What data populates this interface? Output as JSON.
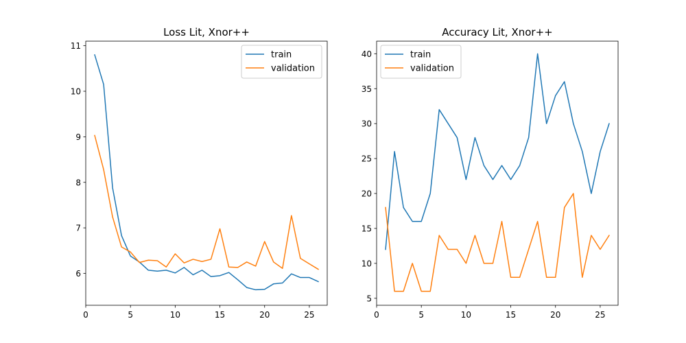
{
  "chart_data": [
    {
      "type": "line",
      "title": "Loss Lit, Xnor++",
      "xlabel": "",
      "ylabel": "",
      "x": [
        1,
        2,
        3,
        4,
        5,
        6,
        7,
        8,
        9,
        10,
        11,
        12,
        13,
        14,
        15,
        16,
        17,
        18,
        19,
        20,
        21,
        22,
        23,
        24,
        25,
        26
      ],
      "xlim": [
        0.0,
        27.0
      ],
      "ylim": [
        5.3,
        11.1
      ],
      "xticks": [
        0,
        5,
        10,
        15,
        20,
        25
      ],
      "xtick_labels": [
        "0",
        "5",
        "10",
        "15",
        "20",
        "25"
      ],
      "yticks": [
        6,
        7,
        8,
        9,
        10,
        11
      ],
      "ytick_labels": [
        "6",
        "7",
        "8",
        "9",
        "10",
        "11"
      ],
      "grid": false,
      "legend_position": "upper right",
      "series": [
        {
          "name": "train",
          "color": "#1f77b4",
          "values": [
            10.8,
            10.15,
            7.88,
            6.83,
            6.38,
            6.25,
            6.07,
            6.05,
            6.07,
            6.01,
            6.13,
            5.97,
            6.07,
            5.93,
            5.95,
            6.02,
            5.86,
            5.69,
            5.64,
            5.65,
            5.77,
            5.79,
            5.99,
            5.91,
            5.91,
            5.82
          ]
        },
        {
          "name": "validation",
          "color": "#ff7f0e",
          "values": [
            9.03,
            8.28,
            7.24,
            6.58,
            6.47,
            6.24,
            6.29,
            6.28,
            6.14,
            6.43,
            6.23,
            6.31,
            6.26,
            6.31,
            6.98,
            6.14,
            6.13,
            6.25,
            6.16,
            6.7,
            6.25,
            6.11,
            7.27,
            6.33,
            6.21,
            6.09
          ]
        }
      ]
    },
    {
      "type": "line",
      "title": "Accuracy Lit, Xnor++",
      "xlabel": "",
      "ylabel": "",
      "x": [
        1,
        2,
        3,
        4,
        5,
        6,
        7,
        8,
        9,
        10,
        11,
        12,
        13,
        14,
        15,
        16,
        17,
        18,
        19,
        20,
        21,
        22,
        23,
        24,
        25,
        26
      ],
      "xlim": [
        0.0,
        27.0
      ],
      "ylim": [
        4.0,
        41.8
      ],
      "xticks": [
        0,
        5,
        10,
        15,
        20,
        25
      ],
      "xtick_labels": [
        "0",
        "5",
        "10",
        "15",
        "20",
        "25"
      ],
      "yticks": [
        5,
        10,
        15,
        20,
        25,
        30,
        35,
        40
      ],
      "ytick_labels": [
        "5",
        "10",
        "15",
        "20",
        "25",
        "30",
        "35",
        "40"
      ],
      "grid": false,
      "legend_position": "upper left",
      "series": [
        {
          "name": "train",
          "color": "#1f77b4",
          "values": [
            12,
            26,
            18,
            16,
            16,
            20,
            32,
            30,
            28,
            22,
            28,
            24,
            22,
            24,
            22,
            24,
            28,
            40,
            30,
            34,
            36,
            30,
            26,
            20,
            26,
            30
          ]
        },
        {
          "name": "validation",
          "color": "#ff7f0e",
          "values": [
            18,
            6,
            6,
            10,
            6,
            6,
            14,
            12,
            12,
            10,
            14,
            10,
            10,
            16,
            8,
            8,
            12,
            16,
            8,
            8,
            18,
            20,
            8,
            14,
            12,
            14
          ]
        }
      ]
    }
  ]
}
